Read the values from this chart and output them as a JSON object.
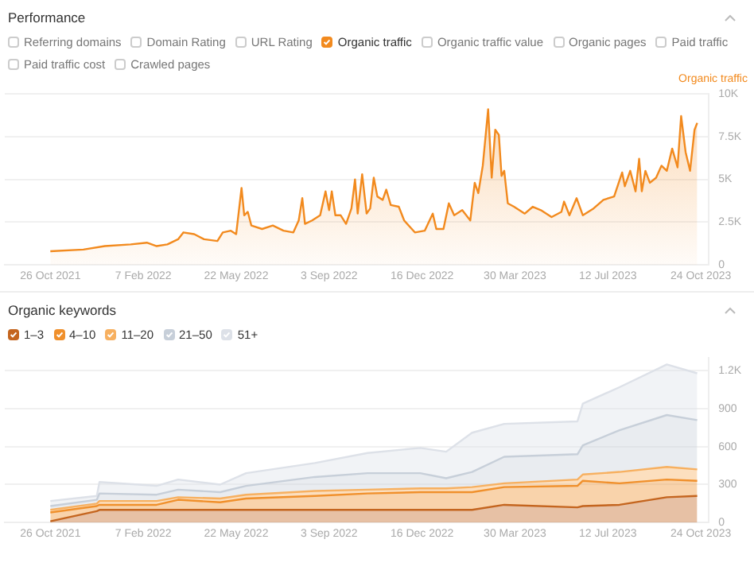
{
  "chart_data": [
    {
      "type": "area",
      "title": "Performance",
      "ylabel": "Organic traffic",
      "x": [
        "2021-10-26",
        "2021-12-02",
        "2021-12-26",
        "2022-01-24",
        "2022-02-11",
        "2022-02-22",
        "2022-03-06",
        "2022-03-18",
        "2022-03-24",
        "2022-04-05",
        "2022-04-16",
        "2022-05-01",
        "2022-05-07",
        "2022-05-16",
        "2022-05-22",
        "2022-05-28",
        "2022-05-31",
        "2022-06-04",
        "2022-06-08",
        "2022-06-20",
        "2022-07-02",
        "2022-07-14",
        "2022-07-25",
        "2022-07-31",
        "2022-08-04",
        "2022-08-07",
        "2022-08-15",
        "2022-08-24",
        "2022-08-30",
        "2022-09-03",
        "2022-09-06",
        "2022-09-10",
        "2022-09-16",
        "2022-09-22",
        "2022-09-28",
        "2022-10-02",
        "2022-10-05",
        "2022-10-10",
        "2022-10-15",
        "2022-10-19",
        "2022-10-23",
        "2022-10-27",
        "2022-11-02",
        "2022-11-06",
        "2022-11-11",
        "2022-11-20",
        "2022-11-26",
        "2022-12-08",
        "2022-12-19",
        "2022-12-28",
        "2023-01-01",
        "2023-01-09",
        "2023-01-15",
        "2023-01-21",
        "2023-01-30",
        "2023-02-08",
        "2023-02-13",
        "2023-02-17",
        "2023-02-22",
        "2023-02-28",
        "2023-03-04",
        "2023-03-08",
        "2023-03-12",
        "2023-03-15",
        "2023-03-18",
        "2023-03-22",
        "2023-03-29",
        "2023-04-10",
        "2023-04-19",
        "2023-04-28",
        "2023-05-10",
        "2023-05-21",
        "2023-05-24",
        "2023-05-30",
        "2023-06-07",
        "2023-06-14",
        "2023-06-26",
        "2023-07-07",
        "2023-07-19",
        "2023-07-28",
        "2023-07-31",
        "2023-08-06",
        "2023-08-12",
        "2023-08-16",
        "2023-08-19",
        "2023-08-23",
        "2023-08-28",
        "2023-09-04",
        "2023-09-10",
        "2023-09-16",
        "2023-09-22",
        "2023-09-28",
        "2023-10-02",
        "2023-10-07",
        "2023-10-12",
        "2023-10-17",
        "2023-10-20"
      ],
      "series": [
        {
          "name": "Organic traffic",
          "color": "#f28a1e",
          "values": [
            800,
            900,
            1100,
            1200,
            1300,
            1100,
            1200,
            1500,
            1900,
            1800,
            1500,
            1400,
            1900,
            2000,
            1800,
            4500,
            2900,
            3100,
            2300,
            2100,
            2300,
            2000,
            1900,
            2600,
            3900,
            2400,
            2600,
            2900,
            4300,
            3200,
            4300,
            2900,
            2900,
            2400,
            3300,
            5000,
            3000,
            5300,
            3000,
            3300,
            5100,
            4000,
            3800,
            4400,
            3500,
            3400,
            2600,
            1900,
            2000,
            3000,
            2100,
            2100,
            3600,
            2900,
            3200,
            2600,
            4800,
            4200,
            5800,
            9100,
            5100,
            7900,
            7600,
            5200,
            5500,
            3600,
            3400,
            3000,
            3400,
            3200,
            2800,
            3100,
            3700,
            2900,
            3900,
            2900,
            3300,
            3800,
            4000,
            5400,
            4600,
            5500,
            4300,
            6200,
            4300,
            5500,
            4800,
            5100,
            5800,
            5500,
            6800,
            5700,
            8700,
            6600,
            5500,
            7900,
            8300
          ]
        }
      ],
      "xlim": [
        "2021-09-05",
        "2023-11-02"
      ],
      "xticks": [
        {
          "value": "2021-10-26",
          "label": "26 Oct 2021"
        },
        {
          "value": "2022-02-07",
          "label": "7 Feb 2022"
        },
        {
          "value": "2022-05-22",
          "label": "22 May 2022"
        },
        {
          "value": "2022-09-03",
          "label": "3 Sep 2022"
        },
        {
          "value": "2022-12-16",
          "label": "16 Dec 2022"
        },
        {
          "value": "2023-03-30",
          "label": "30 Mar 2023"
        },
        {
          "value": "2023-07-12",
          "label": "12 Jul 2023"
        },
        {
          "value": "2023-10-24",
          "label": "24 Oct 2023"
        }
      ],
      "ylim": [
        0,
        10000
      ],
      "yticks": [
        0,
        {
          "value": 2500,
          "label": "2.5K"
        },
        {
          "value": 5000,
          "label": "5K"
        },
        {
          "value": 7500,
          "label": "7.5K"
        },
        {
          "value": 10000,
          "label": "10K"
        }
      ],
      "grid": "y",
      "legend": "top left",
      "marker": "none",
      "annotations": [
        "Referring domains",
        "Domain Rating",
        "URL Rating",
        "Organic traffic value",
        "Organic pages",
        "Paid traffic",
        "Paid traffic cost",
        "Crawled pages"
      ]
    },
    {
      "type": "area",
      "title": "Organic keywords",
      "stacked": true,
      "x": [
        "2021-10-26",
        "2021-12-17",
        "2021-12-20",
        "2022-02-22",
        "2022-03-18",
        "2022-05-04",
        "2022-06-02",
        "2022-08-18",
        "2022-10-16",
        "2022-12-14",
        "2023-01-12",
        "2023-02-10",
        "2023-03-18",
        "2023-06-08",
        "2023-06-14",
        "2023-07-25",
        "2023-09-16",
        "2023-10-20"
      ],
      "series": [
        {
          "name": "1–3",
          "color": "#c4651f",
          "values": [
            10,
            90,
            100,
            100,
            100,
            100,
            100,
            100,
            100,
            100,
            100,
            100,
            140,
            120,
            130,
            140,
            200,
            210
          ]
        },
        {
          "name": "4–10",
          "color": "#f0902c",
          "values": [
            70,
            40,
            40,
            40,
            80,
            60,
            90,
            110,
            130,
            140,
            140,
            140,
            140,
            170,
            200,
            170,
            140,
            120
          ]
        },
        {
          "name": "11–20",
          "color": "#f7b060",
          "values": [
            20,
            20,
            30,
            30,
            20,
            30,
            30,
            40,
            30,
            30,
            30,
            40,
            30,
            50,
            50,
            90,
            100,
            90
          ]
        },
        {
          "name": "21–50",
          "color": "#c7cfd9",
          "values": [
            30,
            30,
            60,
            50,
            60,
            50,
            70,
            110,
            130,
            120,
            80,
            120,
            210,
            200,
            230,
            330,
            410,
            390
          ]
        },
        {
          "name": "51+",
          "color": "#dde1e8",
          "values": [
            40,
            30,
            90,
            70,
            80,
            60,
            100,
            110,
            160,
            200,
            210,
            310,
            260,
            260,
            330,
            340,
            400,
            370
          ]
        }
      ],
      "xlim": [
        "2021-09-05",
        "2023-11-02"
      ],
      "xticks": [
        {
          "value": "2021-10-26",
          "label": "26 Oct 2021"
        },
        {
          "value": "2022-02-07",
          "label": "7 Feb 2022"
        },
        {
          "value": "2022-05-22",
          "label": "22 May 2022"
        },
        {
          "value": "2022-09-03",
          "label": "3 Sep 2022"
        },
        {
          "value": "2022-12-16",
          "label": "16 Dec 2022"
        },
        {
          "value": "2023-03-30",
          "label": "30 Mar 2023"
        },
        {
          "value": "2023-07-12",
          "label": "12 Jul 2023"
        },
        {
          "value": "2023-10-24",
          "label": "24 Oct 2023"
        }
      ],
      "ylim": [
        0,
        1300
      ],
      "yticks": [
        0,
        300,
        600,
        900,
        {
          "value": 1200,
          "label": "1.2K"
        }
      ],
      "grid": "y",
      "legend": "top left",
      "marker": "none"
    }
  ]
}
